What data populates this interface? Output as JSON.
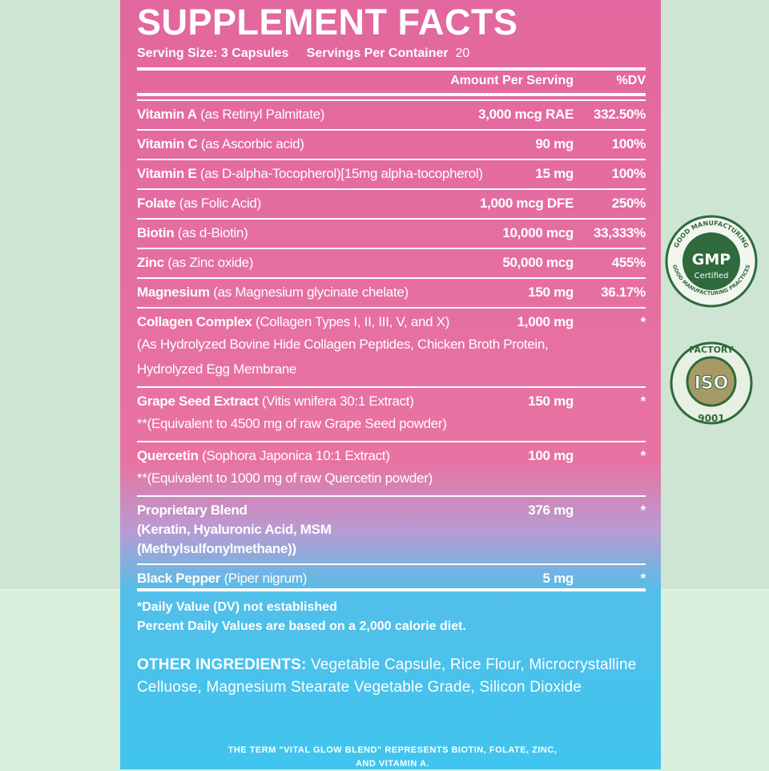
{
  "title": "SUPPLEMENT FACTS",
  "serving": {
    "size": "Serving Size: 3 Capsules",
    "per_container_label": "Servings Per Container",
    "per_container": "20"
  },
  "header": {
    "amount": "Amount Per Serving",
    "dv": "%DV"
  },
  "rows": [
    {
      "name": "Vitamin A",
      "detail": "(as Retinyl Palmitate)",
      "amount": "3,000 mcg RAE",
      "dv": "332.50%"
    },
    {
      "name": "Vitamin C",
      "detail": "(as Ascorbic acid)",
      "amount": "90 mg",
      "dv": "100%"
    },
    {
      "name": "Vitamin E",
      "detail": "(as D-alpha-Tocopherol)[15mg alpha-tocopherol)",
      "amount": "15 mg",
      "dv": "100%"
    },
    {
      "name": "Folate",
      "detail": "(as Folic Acid)",
      "amount": "1,000 mcg DFE",
      "dv": "250%"
    },
    {
      "name": "Biotin",
      "detail": "(as d-Biotin)",
      "amount": "10,000 mcg",
      "dv": "33,333%"
    },
    {
      "name": "Zinc",
      "detail": "(as Zinc oxide)",
      "amount": "50,000 mcg",
      "dv": "455%"
    },
    {
      "name": "Magnesium",
      "detail": "(as Magnesium glycinate chelate)",
      "amount": "150 mg",
      "dv": "36.17%"
    },
    {
      "name": "Collagen Complex",
      "detail": "(Collagen Types I, II, III, V, and X)",
      "amount": "1,000 mg",
      "dv": "*",
      "extra": "(As Hydrolyzed Bovine Hide Collagen Peptides, Chicken Broth Protein, Hydrolyzed Egg Membrane"
    },
    {
      "name": "Grape Seed Extract",
      "detail": "(Vitis wnifera 30:1 Extract)",
      "amount": "150 mg",
      "dv": "*",
      "extra": "**(Equivalent to 4500 mg of raw Grape Seed powder)"
    },
    {
      "name": "Quercetin",
      "detail": "(Sophora Japonica 10:1 Extract)",
      "amount": "100 mg",
      "dv": "*",
      "extra": "**(Equivalent to 1000 mg of raw Quercetin powder)"
    },
    {
      "name": "Proprietary Blend",
      "amount": "376 mg",
      "dv": "*",
      "bold_extra": "(Keratin, Hyaluronic Acid, MSM (Methylsulfonylmethane))"
    },
    {
      "name": "Black Pepper",
      "detail": "(Piper nigrum)",
      "amount": "5 mg",
      "dv": "*"
    }
  ],
  "footnotes": [
    "*Daily Value (DV) not established",
    "Percent Daily Values are based on a 2,000 calorie diet."
  ],
  "other_ingredients": {
    "label": "OTHER INGREDIENTS:",
    "text": "Vegetable Capsule, Rice Flour, Microcrystalline Celluose, Magnesium Stearate Vegetable Grade, Silicon Dioxide"
  },
  "note": "THE TERM \"VITAL GLOW BLEND\" REPRESENTS BIOTIN, FOLATE, ZINC, AND VITAMIN A.",
  "badges": {
    "gmp": {
      "top": "GOOD MANUFACTURING",
      "main": "GMP",
      "sub": "Certified",
      "bottom": "GOOD MANUFACTURING PRACTICES"
    },
    "iso": {
      "top": "FACTORY",
      "main": "ISO",
      "bottom": "9001"
    }
  }
}
